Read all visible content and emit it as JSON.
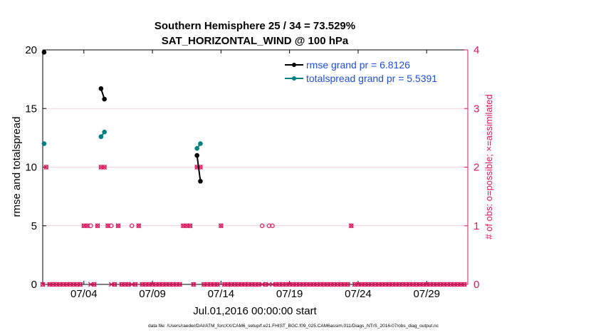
{
  "chart_data": {
    "type": "line",
    "title_line1": "Southern Hemisphere 25 / 34 = 73.529%",
    "title_line2": "SAT_HORIZONTAL_WIND @ 100 hPa",
    "xlabel": "Jul.01,2016 00:00:00 start",
    "ylabel_left": "rmse and totalspread",
    "ylabel_right": "# of obs: o=possible; ×=assimilated",
    "footer": "data file: /Users/raeder/DAI/ATM_forcXX/CAM6_setup/f.e21.FHIST_BGC.f09_025.CAM6assim.011/Diags_NTrS_2016-07/obs_diag_output.nc",
    "xlim": [
      1,
      32
    ],
    "ylim_left": [
      0,
      20
    ],
    "ylim_right": [
      0,
      4
    ],
    "x_ticks": [
      {
        "x": 4,
        "label": "07/04"
      },
      {
        "x": 9,
        "label": "07/09"
      },
      {
        "x": 14,
        "label": "07/14"
      },
      {
        "x": 19,
        "label": "07/19"
      },
      {
        "x": 24,
        "label": "07/24"
      },
      {
        "x": 29,
        "label": "07/29"
      }
    ],
    "y_ticks_left": [
      "0",
      "5",
      "10",
      "15",
      "20"
    ],
    "y_ticks_right": [
      "0",
      "1",
      "2",
      "3",
      "4"
    ],
    "colors": {
      "rmse": "#000000",
      "spread": "#008080",
      "obs": "#d81b60",
      "grid": "#f2c4cf",
      "legend_text": "#1f4fd8",
      "axis": "#000000"
    },
    "series": [
      {
        "name": "rmse",
        "legend": "rmse grand pr = 6.8126",
        "segments": [
          [
            [
              1.1,
              19.8
            ]
          ],
          [
            [
              5.25,
              16.7
            ],
            [
              5.5,
              15.8
            ]
          ],
          [
            [
              12.25,
              11.0
            ],
            [
              12.5,
              8.8
            ]
          ]
        ]
      },
      {
        "name": "totalspread",
        "legend": "totalspread grand pr = 5.5391",
        "segments": [
          [
            [
              1.1,
              12.0
            ]
          ],
          [
            [
              5.25,
              12.6
            ],
            [
              5.5,
              13.0
            ]
          ],
          [
            [
              12.25,
              11.6
            ],
            [
              12.5,
              12.0
            ]
          ]
        ]
      }
    ],
    "obs_possible": {
      "x": [
        1.0,
        1.25,
        1.5,
        1.75,
        2.0,
        2.25,
        2.5,
        2.75,
        3.0,
        3.25,
        3.5,
        3.75,
        4.0,
        4.25,
        4.5,
        4.75,
        5.0,
        5.25,
        5.5,
        5.75,
        6.0,
        6.25,
        6.5,
        6.75,
        7.0,
        7.25,
        7.5,
        7.75,
        8.0,
        8.25,
        8.5,
        8.75,
        9.0,
        9.25,
        9.5,
        9.75,
        10.0,
        10.25,
        10.5,
        10.75,
        11.0,
        11.25,
        11.5,
        11.75,
        12.0,
        12.25,
        12.5,
        12.75,
        13.0,
        13.25,
        13.5,
        13.75,
        14.0,
        14.25,
        14.5,
        14.75,
        15.0,
        15.25,
        15.5,
        15.75,
        16.0,
        16.25,
        16.5,
        16.75,
        17.0,
        17.25,
        17.5,
        17.75,
        18.0,
        18.25,
        18.5,
        18.75,
        19.0,
        19.25,
        19.5,
        19.75,
        20.0,
        20.25,
        20.5,
        20.75,
        21.0,
        21.25,
        21.5,
        21.75,
        22.0,
        22.25,
        22.5,
        22.75,
        23.0,
        23.25,
        23.5,
        23.75,
        24.0,
        24.25,
        24.5,
        24.75,
        25.0,
        25.25,
        25.5,
        25.75,
        26.0,
        26.25,
        26.5,
        26.75,
        27.0,
        27.25,
        27.5,
        27.75,
        28.0,
        28.25,
        28.5,
        28.75,
        29.0,
        29.25,
        29.5,
        29.75,
        30.0,
        30.25,
        30.5,
        30.75,
        31.0,
        31.25,
        31.5,
        31.75
      ],
      "y": [
        0,
        2,
        0,
        0,
        0,
        0,
        0,
        0,
        0,
        0,
        0,
        0,
        1,
        1,
        1,
        0,
        1,
        2,
        2,
        1,
        1,
        0,
        1,
        0,
        0,
        0,
        1,
        0,
        1,
        0,
        0,
        0,
        0,
        0,
        0,
        0,
        0,
        0,
        0,
        0,
        0,
        1,
        1,
        1,
        0,
        2,
        2,
        0,
        0,
        0,
        0,
        0,
        1,
        0,
        0,
        0,
        0,
        0,
        0,
        0,
        0,
        0,
        0,
        0,
        1,
        0,
        1,
        1,
        0,
        0,
        0,
        0,
        0,
        0,
        0,
        0,
        0,
        0,
        0,
        0,
        0,
        0,
        0,
        0,
        0,
        0,
        0,
        0,
        0,
        0,
        1,
        0,
        0,
        0,
        0,
        0,
        0,
        0,
        0,
        0,
        0,
        0,
        0,
        0,
        0,
        0,
        0,
        0,
        0,
        0,
        0,
        0,
        0,
        0,
        0,
        0,
        0,
        0,
        0,
        0,
        0,
        0,
        0,
        0
      ]
    },
    "obs_assimilated": {
      "x": [
        1.0,
        1.25,
        1.5,
        1.75,
        2.0,
        2.25,
        2.5,
        2.75,
        3.0,
        3.25,
        3.5,
        3.75,
        4.0,
        4.25,
        4.5,
        4.75,
        5.0,
        5.25,
        5.5,
        5.75,
        6.0,
        6.25,
        6.5,
        6.75,
        7.0,
        7.25,
        7.5,
        7.75,
        8.0,
        8.25,
        8.5,
        8.75,
        9.0,
        9.25,
        9.5,
        9.75,
        10.0,
        10.25,
        10.5,
        10.75,
        11.0,
        11.25,
        11.5,
        11.75,
        12.0,
        12.25,
        12.5,
        12.75,
        13.0,
        13.25,
        13.5,
        13.75,
        14.0,
        14.25,
        14.5,
        14.75,
        15.0,
        15.25,
        15.5,
        15.75,
        16.0,
        16.25,
        16.5,
        16.75,
        17.0,
        17.25,
        17.5,
        17.75,
        18.0,
        18.25,
        18.5,
        18.75,
        19.0,
        19.25,
        19.5,
        19.75,
        20.0,
        20.25,
        20.5,
        20.75,
        21.0,
        21.25,
        21.5,
        21.75,
        22.0,
        22.25,
        22.5,
        22.75,
        23.0,
        23.25,
        23.5,
        23.75,
        24.0,
        24.25,
        24.5,
        24.75,
        25.0,
        25.25,
        25.5,
        25.75,
        26.0,
        26.25,
        26.5,
        26.75,
        27.0,
        27.25,
        27.5,
        27.75,
        28.0,
        28.25,
        28.5,
        28.75,
        29.0,
        29.25,
        29.5,
        29.75,
        30.0,
        30.25,
        30.5,
        30.75,
        31.0,
        31.25,
        31.5,
        31.75
      ],
      "y": [
        0,
        2,
        0,
        0,
        0,
        0,
        0,
        0,
        0,
        0,
        0,
        0,
        1,
        1,
        0,
        0,
        1,
        2,
        2,
        1,
        0,
        0,
        1,
        0,
        0,
        0,
        0,
        0,
        1,
        0,
        0,
        0,
        0,
        0,
        0,
        0,
        0,
        0,
        0,
        0,
        0,
        1,
        1,
        1,
        0,
        2,
        2,
        0,
        0,
        0,
        0,
        0,
        1,
        0,
        0,
        0,
        0,
        0,
        0,
        0,
        0,
        0,
        0,
        0,
        0,
        0,
        0,
        0,
        0,
        0,
        0,
        0,
        0,
        0,
        0,
        0,
        0,
        0,
        0,
        0,
        0,
        0,
        0,
        0,
        0,
        0,
        0,
        0,
        0,
        0,
        1,
        0,
        0,
        0,
        0,
        0,
        0,
        0,
        0,
        0,
        0,
        0,
        0,
        0,
        0,
        0,
        0,
        0,
        0,
        0,
        0,
        0,
        0,
        0,
        0,
        0,
        0,
        0,
        0,
        0,
        0,
        0,
        0,
        0
      ]
    }
  }
}
